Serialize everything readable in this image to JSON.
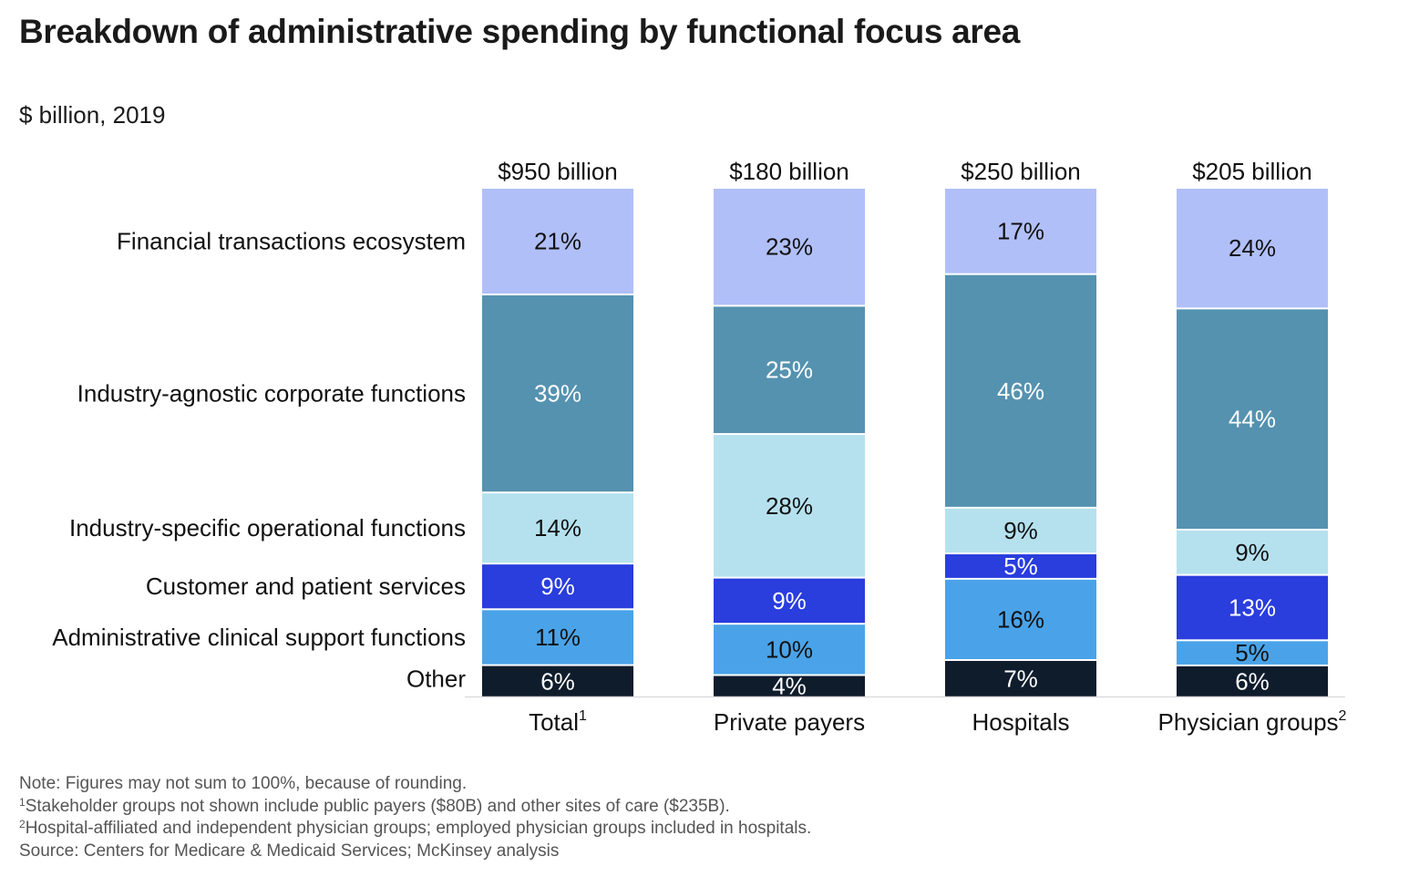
{
  "header": {
    "title": "Breakdown of administrative spending by functional focus area",
    "subtitle": "$ billion, 2019"
  },
  "chart_data": {
    "type": "bar",
    "stacked": true,
    "orientation": "vertical",
    "title": "Breakdown of administrative spending by functional focus area",
    "subtitle": "$ billion, 2019",
    "xlabel": "",
    "ylabel": "",
    "value_unit": "% of stakeholder administrative spending",
    "grid": false,
    "legend": "left (category labels aligned to segments of first bar)",
    "categories": [
      {
        "label": "Total",
        "footnote": "1",
        "total_label": "$950 billion",
        "total_billion": 950
      },
      {
        "label": "Private payers",
        "footnote": "",
        "total_label": "$180 billion",
        "total_billion": 180
      },
      {
        "label": "Hospitals",
        "footnote": "",
        "total_label": "$250 billion",
        "total_billion": 250
      },
      {
        "label": "Physician groups",
        "footnote": "2",
        "total_label": "$205 billion",
        "total_billion": 205
      }
    ],
    "series": [
      {
        "name": "Financial transactions ecosystem",
        "color": "#b1bff8",
        "label_color": "#111111",
        "values": [
          21,
          23,
          17,
          24
        ]
      },
      {
        "name": "Industry-agnostic corporate functions",
        "color": "#5592b0",
        "label_color": "#ffffff",
        "values": [
          39,
          25,
          46,
          44
        ]
      },
      {
        "name": "Industry-specific operational functions",
        "color": "#b5e1ee",
        "label_color": "#111111",
        "values": [
          14,
          28,
          9,
          9
        ]
      },
      {
        "name": "Customer and patient services",
        "color": "#2a3ddd",
        "label_color": "#ffffff",
        "values": [
          9,
          9,
          5,
          13
        ]
      },
      {
        "name": "Administrative clinical support functions",
        "color": "#4aa3e8",
        "label_color": "#111111",
        "values": [
          11,
          10,
          16,
          5
        ]
      },
      {
        "name": "Other",
        "color": "#0f1c2c",
        "label_color": "#ffffff",
        "values": [
          6,
          4,
          7,
          6
        ]
      }
    ],
    "value_suffix": "%"
  },
  "notes": {
    "note": "Note: Figures may not sum to 100%, because of rounding.",
    "footnote1_marker": "1",
    "footnote1": "Stakeholder groups not shown include public payers ($80B) and other sites of care ($235B).",
    "footnote2_marker": "2",
    "footnote2": "Hospital-affiliated and independent physician groups; employed physician groups included in hospitals.",
    "source": "Source: Centers for Medicare & Medicaid Services; McKinsey analysis"
  }
}
